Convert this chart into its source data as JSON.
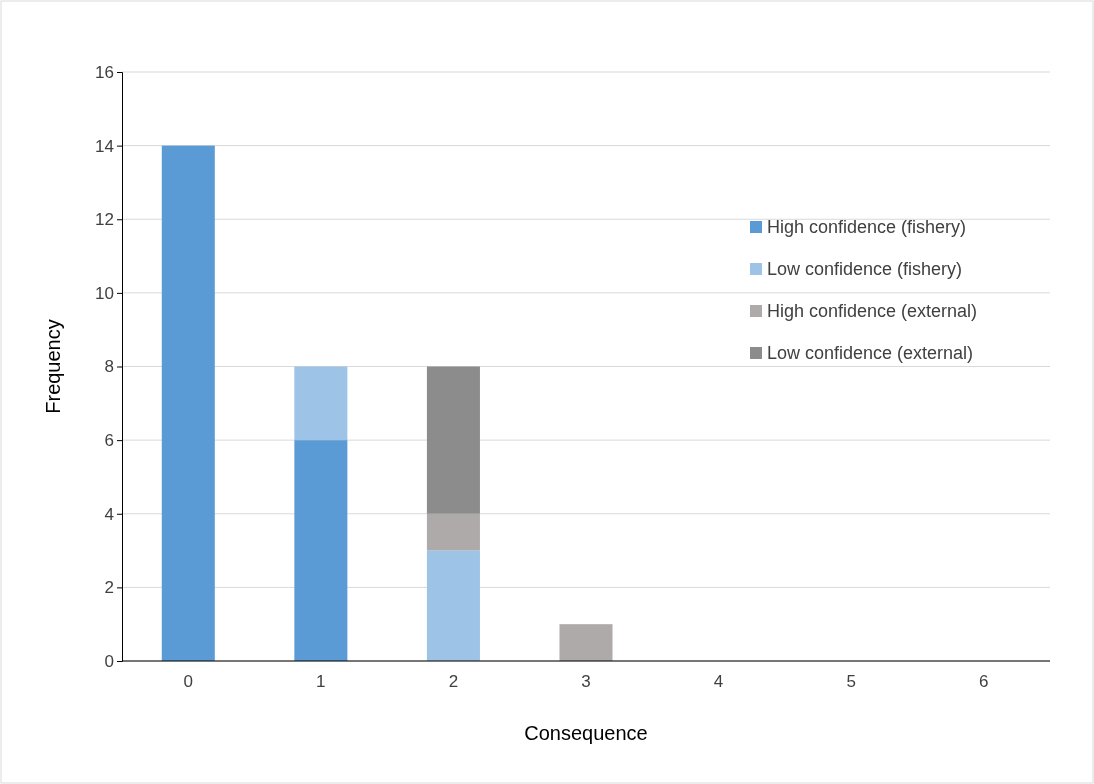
{
  "chart_data": {
    "type": "bar",
    "stacked": true,
    "xlabel": "Consequence",
    "ylabel": "Frequency",
    "categories": [
      "0",
      "1",
      "2",
      "3",
      "4",
      "5",
      "6"
    ],
    "series": [
      {
        "name": "High confidence (fishery)",
        "color": "#5b9bd5",
        "values": [
          14,
          6,
          0,
          0,
          0,
          0,
          0
        ]
      },
      {
        "name": "Low confidence (fishery)",
        "color": "#9dc3e6",
        "values": [
          0,
          2,
          3,
          0,
          0,
          0,
          0
        ]
      },
      {
        "name": "High confidence (external)",
        "color": "#aeaaaa",
        "values": [
          0,
          0,
          1,
          1,
          0,
          0,
          0
        ]
      },
      {
        "name": "Low confidence (external)",
        "color": "#8c8c8c",
        "values": [
          0,
          0,
          4,
          0,
          0,
          0,
          0
        ]
      }
    ],
    "ylim": [
      0,
      16
    ],
    "yticks": [
      0,
      2,
      4,
      6,
      8,
      10,
      12,
      14,
      16
    ],
    "grid": "y",
    "legend": "right"
  }
}
